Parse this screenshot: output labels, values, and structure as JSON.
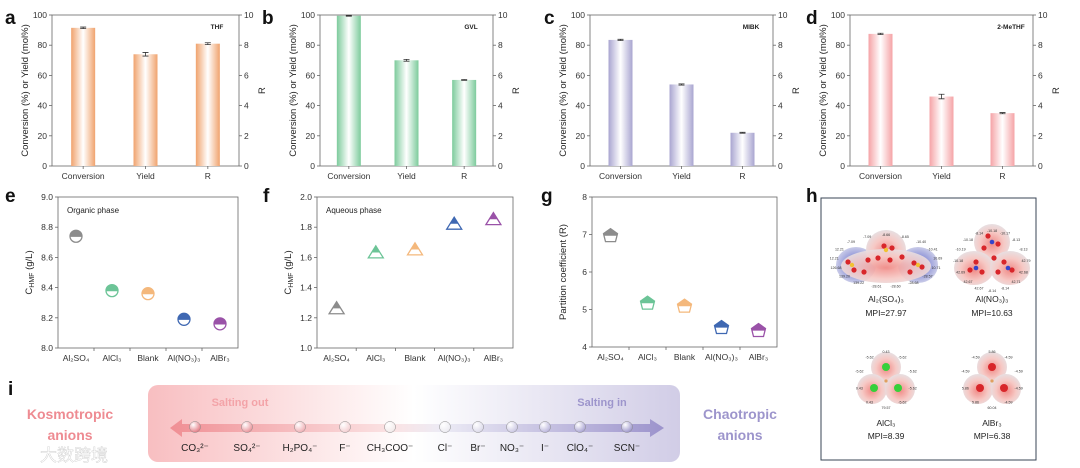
{
  "panel_letters": [
    "a",
    "b",
    "c",
    "d",
    "e",
    "f",
    "g",
    "h",
    "i"
  ],
  "chart_data": [
    {
      "id": "a",
      "type": "bar",
      "solvent": "THF",
      "categories": [
        "Conversion",
        "Yield",
        "R"
      ],
      "values": [
        91.5,
        74,
        8.1
      ],
      "errors": [
        0.5,
        1.2,
        0.06
      ],
      "color": "#f0a36e",
      "ylabel": "Conversion (%) or Yield (mol%)",
      "ylabel_right": "R",
      "ylim": [
        0,
        100
      ],
      "ylim_right": [
        0,
        10
      ],
      "yticks": [
        "0",
        "20",
        "40",
        "60",
        "80",
        "100"
      ],
      "yticks_right": [
        "0",
        "2",
        "4",
        "6",
        "8",
        "10"
      ]
    },
    {
      "id": "b",
      "type": "bar",
      "solvent": "GVL",
      "categories": [
        "Conversion",
        "Yield",
        "R"
      ],
      "values": [
        99.5,
        70,
        5.7
      ],
      "errors": [
        0.3,
        0.6,
        0.03
      ],
      "color": "#7dcb9c",
      "ylabel": "Conversion (%) or Yield (mol%)",
      "ylabel_right": "R",
      "ylim": [
        0,
        100
      ],
      "ylim_right": [
        0,
        10
      ],
      "yticks": [
        "0",
        "20",
        "40",
        "60",
        "80",
        "100"
      ],
      "yticks_right": [
        "0",
        "2",
        "4",
        "6",
        "8",
        "10"
      ]
    },
    {
      "id": "c",
      "type": "bar",
      "solvent": "MIBK",
      "categories": [
        "Conversion",
        "Yield",
        "R"
      ],
      "values": [
        83.5,
        54,
        2.2
      ],
      "errors": [
        0.4,
        0.4,
        0.03
      ],
      "color": "#a9a5d0",
      "ylabel": "Conversion (%) or Yield (mol%)",
      "ylabel_right": "R",
      "ylim": [
        0,
        100
      ],
      "ylim_right": [
        0,
        10
      ],
      "yticks": [
        "0",
        "20",
        "40",
        "60",
        "80",
        "100"
      ],
      "yticks_right": [
        "0",
        "2",
        "4",
        "6",
        "8",
        "10"
      ]
    },
    {
      "id": "d",
      "type": "bar",
      "solvent": "2-MeTHF",
      "categories": [
        "Conversion",
        "Yield",
        "R"
      ],
      "values": [
        87.5,
        46,
        3.5
      ],
      "errors": [
        0.4,
        1.5,
        0.04
      ],
      "color": "#f5a3a6",
      "ylabel": "Conversion (%) or Yield (mol%)",
      "ylabel_right": "R",
      "ylim": [
        0,
        100
      ],
      "ylim_right": [
        0,
        10
      ],
      "yticks": [
        "0",
        "20",
        "40",
        "60",
        "80",
        "100"
      ],
      "yticks_right": [
        "0",
        "2",
        "4",
        "6",
        "8",
        "10"
      ]
    },
    {
      "id": "e",
      "type": "scatter",
      "marker": "circle",
      "annotation": "Organic phase",
      "categories": [
        "Al₂SO₄",
        "AlCl₃",
        "Blank",
        "Al(NO₃)₃",
        "AlBr₃"
      ],
      "values": [
        8.74,
        8.38,
        8.36,
        8.19,
        8.16
      ],
      "ylabel_main": "C",
      "ylabel_sub": "HMF",
      "ylabel_unit": " (g/L)",
      "ylim": [
        8.0,
        9.0
      ],
      "yticks": [
        "8.0",
        "8.2",
        "8.4",
        "8.6",
        "8.8",
        "9.0"
      ]
    },
    {
      "id": "f",
      "type": "scatter",
      "marker": "triangle",
      "annotation": "Aqueous phase",
      "categories": [
        "Al₂SO₄",
        "AlCl₃",
        "Blank",
        "Al(NO₃)₃",
        "AlBr₃"
      ],
      "values": [
        1.26,
        1.63,
        1.65,
        1.82,
        1.85
      ],
      "ylabel_main": "C",
      "ylabel_sub": "HMF",
      "ylabel_unit": " (g/L)",
      "ylim": [
        1.0,
        2.0
      ],
      "yticks": [
        "1.0",
        "1.2",
        "1.4",
        "1.6",
        "1.8",
        "2.0"
      ]
    },
    {
      "id": "g",
      "type": "scatter",
      "marker": "pentagon",
      "annotation": "",
      "categories": [
        "Al₂SO₄",
        "AlCl₃",
        "Blank",
        "Al(NO₃)₃",
        "AlBr₃"
      ],
      "values": [
        6.97,
        5.17,
        5.09,
        4.52,
        4.44
      ],
      "ylabel_main": "Partition coefficient (R)",
      "ylabel_sub": "",
      "ylabel_unit": "",
      "ylim": [
        4,
        8
      ],
      "yticks": [
        "4",
        "5",
        "6",
        "7",
        "8"
      ]
    }
  ],
  "marker_colors": [
    "#8c8c8c",
    "#6cc497",
    "#f4b87c",
    "#3f68b2",
    "#9a52a8"
  ],
  "panel_h": {
    "molecules": [
      {
        "name": "Al₂(SO₄)₃",
        "mpi": "MPI=27.97",
        "values": [
          "-8.66",
          "-8.65",
          "-10.40",
          "-10.41",
          "10.69",
          "10.71",
          "-28.57",
          "-28.68",
          "-28.60",
          "-28.61",
          "139.22",
          "139.20",
          "126.68",
          "12.21",
          "12.21",
          "-7.09",
          "-7.09"
        ]
      },
      {
        "name": "Al(NO₃)₃",
        "mpi": "MPI=10.63",
        "values": [
          "-10.18",
          "-10.17",
          "-8.13",
          "-8.13",
          "42.79",
          "42.68",
          "42.71",
          "-8.14",
          "-8.14",
          "42.67",
          "42.67",
          "42.69",
          "-10.18",
          "-10.19",
          "-10.18",
          "-8.14"
        ]
      },
      {
        "name": "AlCl₃",
        "mpi": "MPI=8.39",
        "values": [
          "0.43",
          "-5.62",
          "-5.62",
          "-5.62",
          "-5.62",
          "79.57",
          "0.43",
          "0.43",
          "-5.62",
          "-5.62"
        ]
      },
      {
        "name": "AlBr₃",
        "mpi": "MPI=6.38",
        "values": [
          "5.86",
          "-4.59",
          "-4.59",
          "-4.59",
          "-4.59",
          "60.04",
          "5.86",
          "5.86",
          "-4.59",
          "-4.59"
        ]
      }
    ]
  },
  "panel_i": {
    "left_label_line1": "Kosmotropic",
    "left_label_line2": "anions",
    "right_label_line1": "Chaotropic",
    "right_label_line2": "anions",
    "salting_out": "Salting out",
    "salting_in": "Salting in",
    "anions": [
      "CO₃²⁻",
      "SO₄²⁻",
      "H₂PO₄⁻",
      "F⁻",
      "CH₃COO⁻",
      "Cl⁻",
      "Br⁻",
      "NO₃⁻",
      "I⁻",
      "ClO₄⁻",
      "SCN⁻"
    ]
  },
  "watermark": "大数跨境"
}
